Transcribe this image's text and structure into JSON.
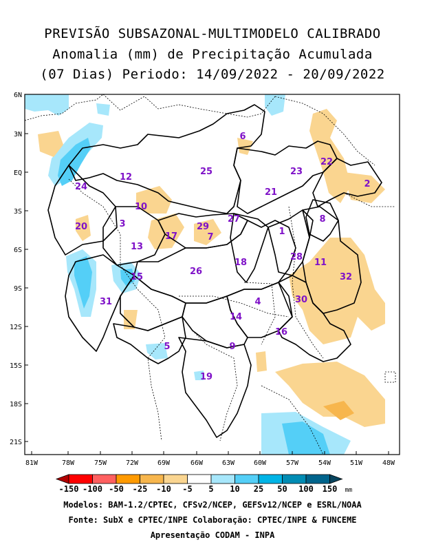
{
  "title": {
    "line1": "PREVISÃO SUBSAZONAL-MULTIMODELO CALIBRADO",
    "line2": "Anomalia (mm) de Precipitação Acumulada",
    "line3": "(07 Dias) Periodo: 14/09/2022 - 20/09/2022"
  },
  "lat_labels": [
    "6N",
    "3N",
    "EQ",
    "3S",
    "6S",
    "9S",
    "12S",
    "15S",
    "18S",
    "21S"
  ],
  "lon_labels": [
    "81W",
    "78W",
    "75W",
    "72W",
    "69W",
    "66W",
    "63W",
    "60W",
    "57W",
    "54W",
    "51W",
    "48W"
  ],
  "basins": [
    "1",
    "2",
    "3",
    "4",
    "5",
    "6",
    "7",
    "8",
    "9",
    "10",
    "11",
    "12",
    "13",
    "14",
    "15",
    "16",
    "17",
    "18",
    "19",
    "20",
    "21",
    "22",
    "23",
    "24",
    "25",
    "26",
    "27",
    "28",
    "29",
    "30",
    "31",
    "32"
  ],
  "colorbar": {
    "labels": [
      "-150",
      "-100",
      "-50",
      "-25",
      "-10",
      "-5",
      "5",
      "10",
      "25",
      "50",
      "100",
      "150"
    ],
    "unit": "mm",
    "colors": [
      "#b20000",
      "#ff0000",
      "#ff6060",
      "#ff9a00",
      "#f7b64d",
      "#fad590",
      "#ffffff",
      "#a7e7fb",
      "#54cff7",
      "#00b4e6",
      "#008cb4",
      "#00648c",
      "#08445e"
    ]
  },
  "credits": {
    "line1": "Modelos: BAM-1.2/CPTEC, CFSv2/NCEP, GEFSv12/NCEP e ESRL/NOAA",
    "line2": "Fonte: SubX e CPTEC/INPE      Colaboração: CPTEC/INPE & FUNCEME",
    "line3": "Apresentação CODAM - INPA"
  },
  "colors": {
    "label": "#7f12c8",
    "wet": "#54cff7",
    "wet_light": "#a7e7fb",
    "dry": "#fad590"
  }
}
